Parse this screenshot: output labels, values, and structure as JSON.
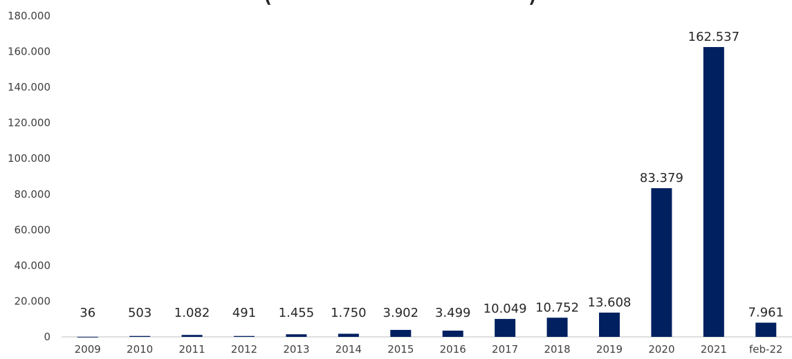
{
  "chart_data": {
    "type": "bar",
    "title": "",
    "title_fragment_left": "(",
    "title_fragment_right": ")",
    "xlabel": "",
    "ylabel": "",
    "categories": [
      "2009",
      "2010",
      "2011",
      "2012",
      "2013",
      "2014",
      "2015",
      "2016",
      "2017",
      "2018",
      "2019",
      "2020",
      "2021",
      "feb-22"
    ],
    "values": [
      36,
      503,
      1082,
      491,
      1455,
      1750,
      3902,
      3499,
      10049,
      10752,
      13608,
      83379,
      162537,
      7961
    ],
    "data_labels": [
      "36",
      "503",
      "1.082",
      "491",
      "1.455",
      "1.750",
      "3.902",
      "3.499",
      "10.049",
      "10.752",
      "13.608",
      "83.379",
      "162.537",
      "7.961"
    ],
    "ylim": [
      0,
      180000
    ],
    "yticks": [
      0,
      20000,
      40000,
      60000,
      80000,
      100000,
      120000,
      140000,
      160000,
      180000
    ],
    "ytick_labels": [
      "0",
      "20.000",
      "40.000",
      "60.000",
      "80.000",
      "100.000",
      "120.000",
      "140.000",
      "160.000",
      "180.000"
    ],
    "grid": false,
    "legend": "none",
    "bar_color": "#002060"
  }
}
